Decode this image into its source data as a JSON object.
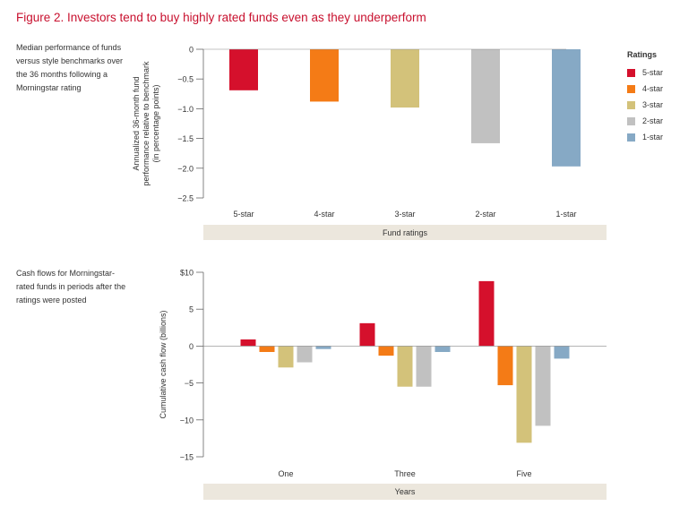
{
  "figure": {
    "title": "Figure 2. Investors tend to buy highly rated funds even as they underperform",
    "top_description": "Median performance of funds versus style benchmarks over the 36 months following a Morningstar rating",
    "bottom_description": "Cash flows for Morningstar-rated funds in periods after the ratings were posted"
  },
  "legend": {
    "title": "Ratings",
    "items": [
      {
        "label": "5-star",
        "color": "#d5102c"
      },
      {
        "label": "4-star",
        "color": "#f47b16"
      },
      {
        "label": "3-star",
        "color": "#d3c27a"
      },
      {
        "label": "2-star",
        "color": "#c1c1c1"
      },
      {
        "label": "1-star",
        "color": "#86a9c5"
      }
    ]
  },
  "chart_data": [
    {
      "type": "bar",
      "ylabel": "Annualized 36-month fund performance relative to benchmark (in percentage points)",
      "ylabel_lines": [
        "Annualized 36-month fund",
        "performance relative to benchmark",
        "(in percentage points)"
      ],
      "xlabel": "Fund ratings",
      "categories": [
        "5-star",
        "4-star",
        "3-star",
        "2-star",
        "1-star"
      ],
      "values": [
        -0.69,
        -0.88,
        -0.98,
        -1.58,
        -1.97
      ],
      "colors": [
        "#d5102c",
        "#f47b16",
        "#d3c27a",
        "#c1c1c1",
        "#86a9c5"
      ],
      "ylim": [
        -2.5,
        0
      ],
      "yticks": [
        0,
        -0.5,
        -1.0,
        -1.5,
        -2.0,
        -2.5
      ],
      "ytick_labels": [
        "0",
        "−0.5",
        "−1.0",
        "−1.5",
        "−2.0",
        "−2.5"
      ]
    },
    {
      "type": "bar",
      "ylabel": "Cumulative cash flow (billions)",
      "xlabel": "Years",
      "categories": [
        "One",
        "Three",
        "Five"
      ],
      "series": [
        {
          "name": "5-star",
          "color": "#d5102c",
          "values": [
            0.9,
            3.1,
            8.8
          ]
        },
        {
          "name": "4-star",
          "color": "#f47b16",
          "values": [
            -0.8,
            -1.3,
            -5.3
          ]
        },
        {
          "name": "3-star",
          "color": "#d3c27a",
          "values": [
            -2.9,
            -5.5,
            -13.1
          ]
        },
        {
          "name": "2-star",
          "color": "#c1c1c1",
          "values": [
            -2.2,
            -5.5,
            -10.8
          ]
        },
        {
          "name": "1-star",
          "color": "#86a9c5",
          "values": [
            -0.4,
            -0.8,
            -1.7
          ]
        }
      ],
      "ylim": [
        -15,
        10
      ],
      "yticks": [
        10,
        5,
        0,
        -5,
        -10,
        -15
      ],
      "ytick_labels": [
        "$10",
        "5",
        "0",
        "−5",
        "−10",
        "−15"
      ]
    }
  ]
}
